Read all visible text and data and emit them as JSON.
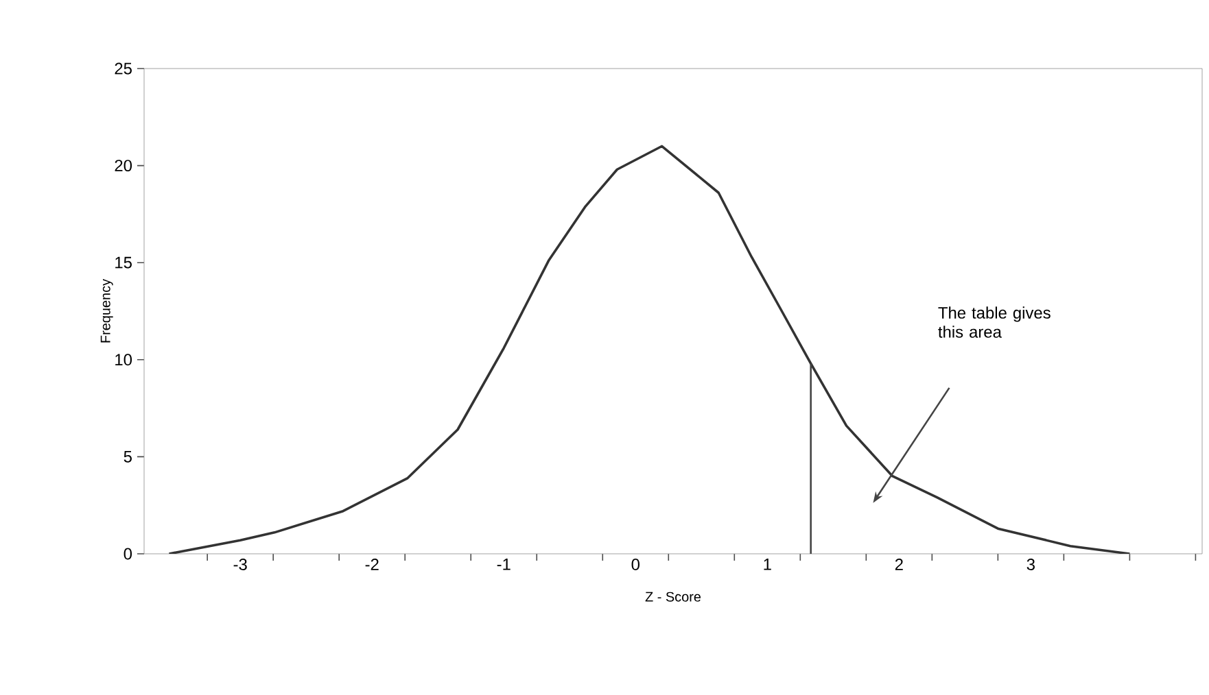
{
  "chart_data": {
    "type": "line",
    "xlabel": "Z - Score",
    "ylabel": "Frequency",
    "x": [
      -3.54,
      -3.0,
      -2.74,
      -2.22,
      -1.73,
      -1.35,
      -1.0,
      -0.66,
      -0.38,
      -0.14,
      0.2,
      0.63,
      0.88,
      1.11,
      1.33,
      1.6,
      1.95,
      2.29,
      2.75,
      3.3,
      3.75
    ],
    "series": [
      {
        "color": "#333333",
        "values": [
          0,
          0.7,
          1.1,
          2.2,
          3.9,
          6.4,
          10.6,
          15.1,
          17.9,
          19.8,
          21,
          18.6,
          15.3,
          12.5,
          9.8,
          6.6,
          4.0,
          2.9,
          1.3,
          0.4,
          0
        ]
      },
      {
        "color": "#444444",
        "x": [
          1.33,
          1.33
        ],
        "values": [
          0,
          9.8
        ]
      }
    ],
    "xlim": [
      -3.73,
      4.3
    ],
    "ylim": [
      0,
      25
    ],
    "yticks": [
      0,
      5,
      10,
      15,
      20,
      25
    ],
    "xticks": [
      -3,
      -2,
      -1,
      0,
      1,
      2,
      3,
      {
        "value": -3.25,
        "label": null
      },
      {
        "value": -2.75,
        "label": null
      },
      {
        "value": -2.25,
        "label": null
      },
      {
        "value": -1.75,
        "label": null
      },
      {
        "value": -1.25,
        "label": null
      },
      {
        "value": -0.75,
        "label": null
      },
      {
        "value": -0.25,
        "label": null
      },
      {
        "value": 0.25,
        "label": null
      },
      {
        "value": 0.75,
        "label": null
      },
      {
        "value": 1.25,
        "label": null
      },
      {
        "value": 1.75,
        "label": null
      },
      {
        "value": 2.25,
        "label": null
      },
      {
        "value": 2.75,
        "label": null
      },
      {
        "value": 3.25,
        "label": null
      },
      {
        "value": 3.75,
        "label": null
      },
      {
        "value": 4.25,
        "label": null
      }
    ],
    "annotations": [
      "The table gives this area"
    ],
    "marker": "none",
    "line_style": "solid"
  }
}
